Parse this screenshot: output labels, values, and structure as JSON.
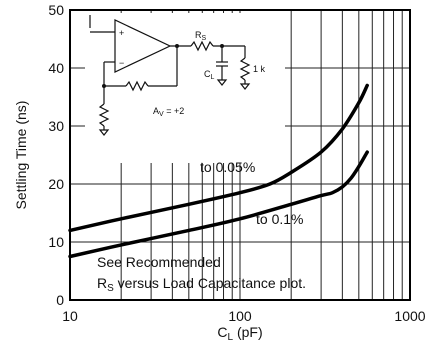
{
  "chart_data": {
    "type": "line",
    "xscale": "log",
    "xlim": [
      10,
      1000
    ],
    "ylim": [
      0,
      50
    ],
    "grid": true,
    "xlabel": "C",
    "xlabel_sub": "L",
    "xlabel_unit": " (pF)",
    "ylabel": "Settling Time (ns)",
    "xticks": [
      10,
      100,
      1000
    ],
    "xtick_labels": [
      "10",
      "100",
      "1000"
    ],
    "yticks": [
      0,
      10,
      20,
      30,
      40,
      50
    ],
    "ytick_labels": [
      "0",
      "10",
      "20",
      "30",
      "40",
      "50"
    ],
    "series": [
      {
        "name": "to 0.05%",
        "x": [
          10,
          20,
          50,
          100,
          150,
          200,
          300,
          400,
          500,
          560
        ],
        "y": [
          12,
          14,
          16.5,
          18.5,
          20,
          22,
          25.5,
          29.5,
          34,
          37
        ]
      },
      {
        "name": "to 0.1%",
        "x": [
          10,
          20,
          50,
          100,
          200,
          300,
          350,
          400,
          450,
          500,
          560
        ],
        "y": [
          7.5,
          9.5,
          12,
          14,
          16.5,
          18,
          18.5,
          19.5,
          21,
          23,
          25.5
        ]
      }
    ],
    "annotations": [
      "See Recommended",
      "R",
      "S",
      " versus Load Capacitance plot."
    ],
    "inset": {
      "rs_label": "R",
      "rs_sub": "S",
      "cl_label": "C",
      "cl_sub": "L",
      "load_label": "1 k",
      "gain_label": "A",
      "gain_sub": "V",
      "gain_value": " = +2",
      "plus_sign": "+",
      "minus_sign": "−"
    }
  }
}
